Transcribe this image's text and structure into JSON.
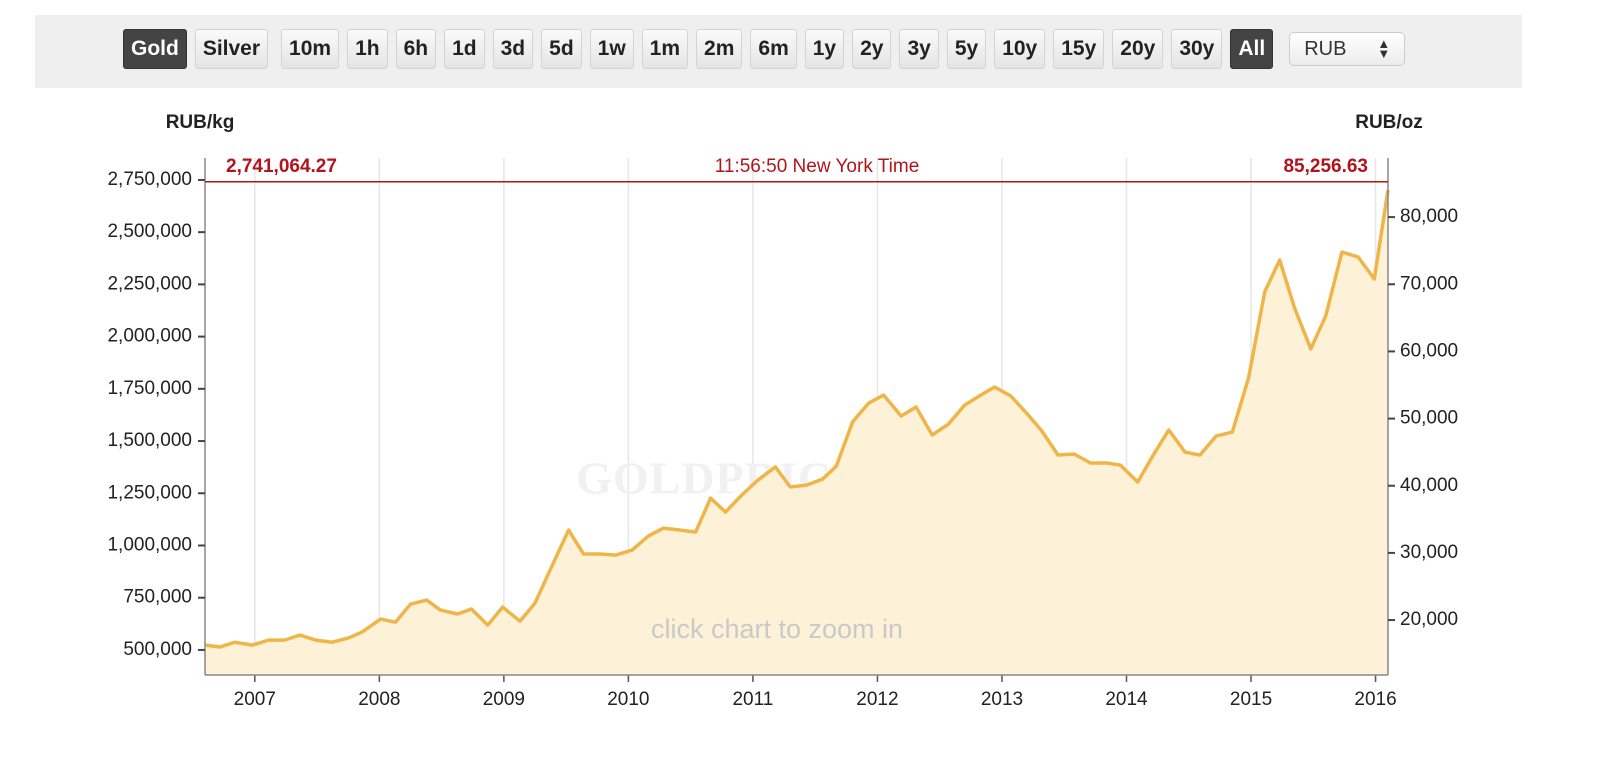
{
  "toolbar": {
    "metals": [
      {
        "label": "Gold",
        "active": true
      },
      {
        "label": "Silver",
        "active": false
      }
    ],
    "ranges": [
      {
        "label": "10m",
        "active": false
      },
      {
        "label": "1h",
        "active": false
      },
      {
        "label": "6h",
        "active": false
      },
      {
        "label": "1d",
        "active": false
      },
      {
        "label": "3d",
        "active": false
      },
      {
        "label": "5d",
        "active": false
      },
      {
        "label": "1w",
        "active": false
      },
      {
        "label": "1m",
        "active": false
      },
      {
        "label": "2m",
        "active": false
      },
      {
        "label": "6m",
        "active": false
      },
      {
        "label": "1y",
        "active": false
      },
      {
        "label": "2y",
        "active": false
      },
      {
        "label": "3y",
        "active": false
      },
      {
        "label": "5y",
        "active": false
      },
      {
        "label": "10y",
        "active": false
      },
      {
        "label": "15y",
        "active": false
      },
      {
        "label": "20y",
        "active": false
      },
      {
        "label": "30y",
        "active": false
      },
      {
        "label": "All",
        "active": true
      }
    ],
    "currency": "RUB"
  },
  "chart_data": {
    "type": "line",
    "y_label": "RUB/kg",
    "y2_label": "RUB/oz",
    "watermark": "GOLDPRICE.ORG",
    "hint": "click chart to zoom in",
    "time": "11:56:50 New York Time",
    "price_line": {
      "value": 2741064.27,
      "label": "2,741,064.27"
    },
    "price_line_oz": {
      "value": 85256.63,
      "label": "85,256.63"
    },
    "price_color": "#b3141b",
    "x": [
      2006.6,
      2006.72,
      2006.84,
      2006.98,
      2007.11,
      2007.24,
      2007.36,
      2007.49,
      2007.62,
      2007.75,
      2007.86,
      2008.01,
      2008.13,
      2008.25,
      2008.38,
      2008.49,
      2008.63,
      2008.74,
      2008.87,
      2008.99,
      2009.13,
      2009.25,
      2009.36,
      2009.52,
      2009.64,
      2009.77,
      2009.9,
      2010.03,
      2010.16,
      2010.28,
      2010.41,
      2010.54,
      2010.66,
      2010.78,
      2010.91,
      2011.04,
      2011.18,
      2011.3,
      2011.43,
      2011.56,
      2011.67,
      2011.8,
      2011.93,
      2012.05,
      2012.19,
      2012.31,
      2012.44,
      2012.57,
      2012.7,
      2012.82,
      2012.94,
      2013.07,
      2013.19,
      2013.32,
      2013.45,
      2013.58,
      2013.71,
      2013.84,
      2013.95,
      2014.09,
      2014.21,
      2014.34,
      2014.47,
      2014.59,
      2014.72,
      2014.85,
      2014.98,
      2015.11,
      2015.23,
      2015.35,
      2015.48,
      2015.6,
      2015.73,
      2015.86,
      2015.99,
      2016.1
    ],
    "series": [
      {
        "name": "Gold",
        "color": "#f0b549",
        "fill": "#fdf1d8",
        "values": [
          523000,
          514000,
          537000,
          523000,
          547000,
          547000,
          571000,
          547000,
          537000,
          557000,
          585000,
          648000,
          633000,
          719000,
          739000,
          691000,
          672000,
          696000,
          619000,
          705000,
          638000,
          724000,
          868000,
          1074000,
          959000,
          959000,
          954000,
          978000,
          1045000,
          1083000,
          1074000,
          1064000,
          1227000,
          1160000,
          1241000,
          1313000,
          1376000,
          1280000,
          1289000,
          1318000,
          1380000,
          1591000,
          1682000,
          1720000,
          1620000,
          1663000,
          1529000,
          1581000,
          1672000,
          1716000,
          1759000,
          1716000,
          1639000,
          1548000,
          1433000,
          1438000,
          1395000,
          1395000,
          1385000,
          1304000,
          1428000,
          1553000,
          1447000,
          1433000,
          1524000,
          1543000,
          1802000,
          2214000,
          2367000,
          2137000,
          1941000,
          2099000,
          2405000,
          2381000,
          2276000,
          2702000
        ]
      }
    ],
    "xlim": [
      2006.6,
      2016.1
    ],
    "xticks": [
      2007,
      2008,
      2009,
      2010,
      2011,
      2012,
      2013,
      2014,
      2015,
      2016
    ],
    "ylim": [
      380000,
      2855000
    ],
    "yticks": [
      {
        "value": 500000,
        "label": "500,000"
      },
      {
        "value": 750000,
        "label": "750,000"
      },
      {
        "value": 1000000,
        "label": "1,000,000"
      },
      {
        "value": 1250000,
        "label": "1,250,000"
      },
      {
        "value": 1500000,
        "label": "1,500,000"
      },
      {
        "value": 1750000,
        "label": "1,750,000"
      },
      {
        "value": 2000000,
        "label": "2,000,000"
      },
      {
        "value": 2250000,
        "label": "2,250,000"
      },
      {
        "value": 2500000,
        "label": "2,500,000"
      },
      {
        "value": 2750000,
        "label": "2,750,000"
      }
    ],
    "y2lim": [
      11820,
      88800
    ],
    "y2ticks": [
      {
        "value": 20000,
        "label": "20,000"
      },
      {
        "value": 30000,
        "label": "30,000"
      },
      {
        "value": 40000,
        "label": "40,000"
      },
      {
        "value": 50000,
        "label": "50,000"
      },
      {
        "value": 60000,
        "label": "60,000"
      },
      {
        "value": 70000,
        "label": "70,000"
      },
      {
        "value": 80000,
        "label": "80,000"
      }
    ],
    "grid": true
  }
}
